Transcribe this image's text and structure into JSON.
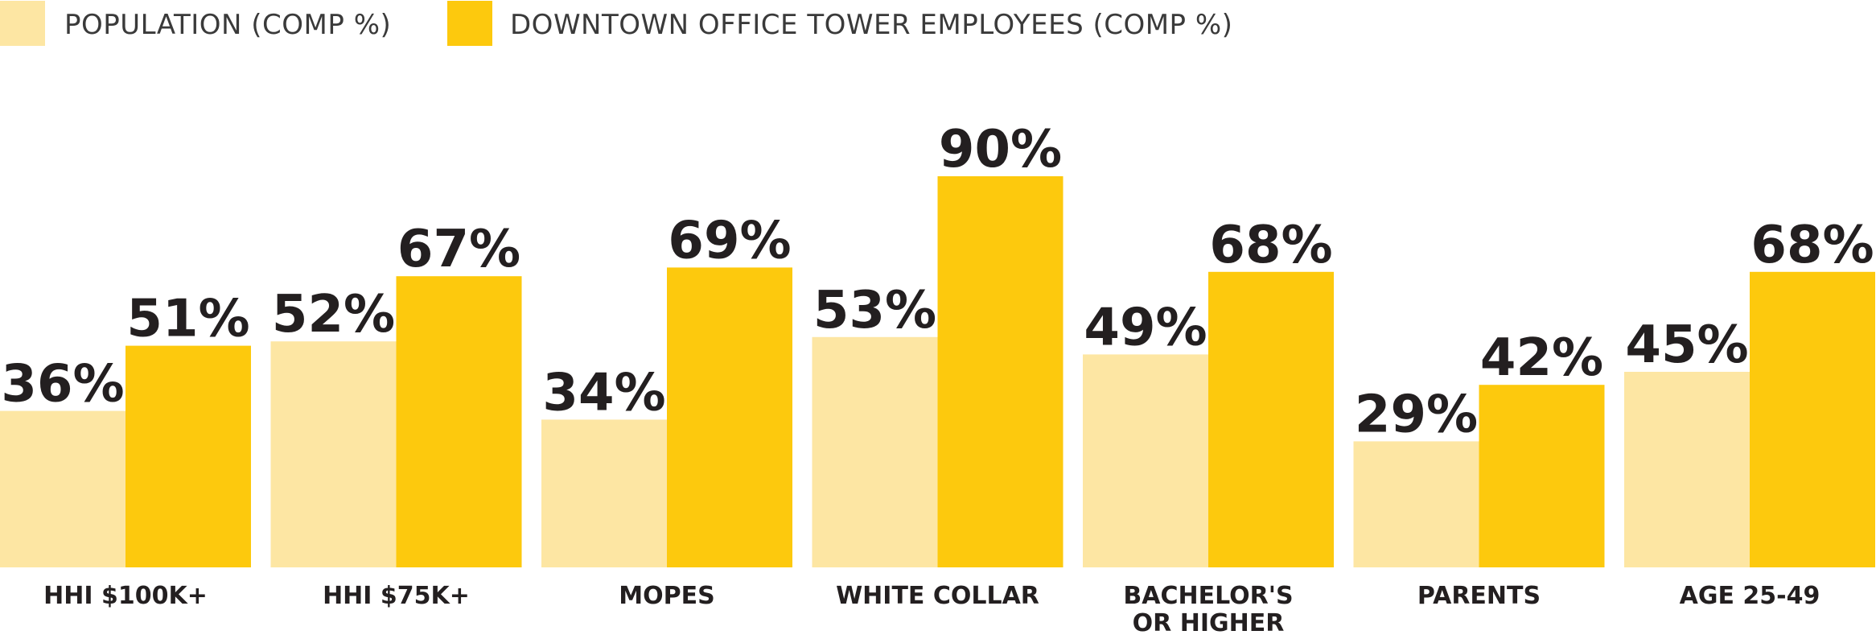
{
  "chart_data": {
    "type": "bar",
    "categories": [
      [
        "HHI $100K+"
      ],
      [
        "HHI $75K+"
      ],
      [
        "MOPES"
      ],
      [
        "WHITE COLLAR"
      ],
      [
        "BACHELOR'S",
        "OR HIGHER"
      ],
      [
        "PARENTS"
      ],
      [
        "AGE 25-49"
      ]
    ],
    "series": [
      {
        "name": "POPULATION (COMP %)",
        "color": "#fde6a3",
        "values": [
          36,
          52,
          34,
          53,
          49,
          29,
          45
        ]
      },
      {
        "name": "DOWNTOWN OFFICE TOWER EMPLOYEES (COMP %)",
        "color": "#fdc90d",
        "values": [
          51,
          67,
          69,
          90,
          68,
          42,
          68
        ]
      }
    ],
    "value_suffix": "%",
    "ylim": [
      0,
      100
    ],
    "legend_position": "top-left",
    "grid": false
  }
}
